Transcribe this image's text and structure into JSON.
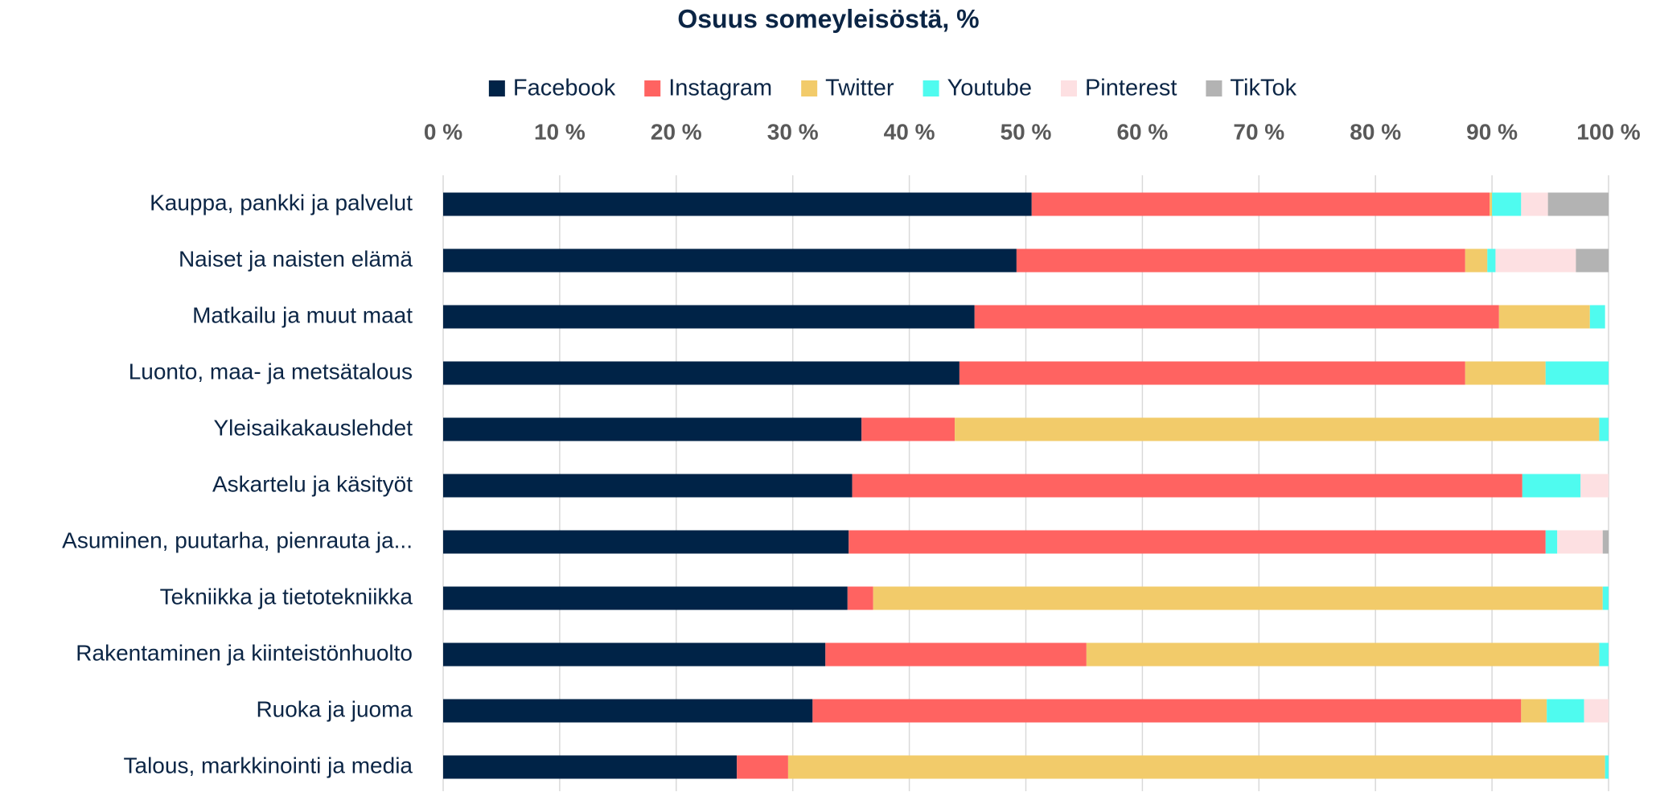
{
  "chart_data": {
    "type": "stacked-barh",
    "title": "Osuus someyleisöstä, %",
    "categories": [
      "Kauppa, pankki ja palvelut",
      "Naiset ja naisten elämä",
      "Matkailu ja muut maat",
      "Luonto, maa- ja metsätalous",
      "Yleisaikakauslehdet",
      "Askartelu ja käsityöt",
      "Asuminen, puutarha, pienrauta ja...",
      "Tekniikka ja tietotekniikka",
      "Rakentaminen ja kiinteistönhuolto",
      "Ruoka ja juoma",
      "Talous, markkinointi ja media"
    ],
    "series": [
      {
        "name": "Facebook",
        "color": "#002347",
        "values": [
          50.5,
          49.2,
          45.6,
          44.3,
          35.9,
          35.1,
          34.8,
          34.7,
          32.8,
          31.7,
          25.2
        ]
      },
      {
        "name": "Instagram",
        "color": "#ff6361",
        "values": [
          39.3,
          38.5,
          45.0,
          43.4,
          8.0,
          57.5,
          59.8,
          2.2,
          22.4,
          60.8,
          4.4
        ]
      },
      {
        "name": "Twitter",
        "color": "#f2cb6a",
        "values": [
          0.2,
          1.9,
          7.8,
          6.9,
          55.3,
          0,
          0,
          62.6,
          44.0,
          2.2,
          70.1
        ]
      },
      {
        "name": "Youtube",
        "color": "#4ffbef",
        "values": [
          2.5,
          0.7,
          1.3,
          5.4,
          0.8,
          5.0,
          1.0,
          0.5,
          0.8,
          3.2,
          0.3
        ]
      },
      {
        "name": "Pinterest",
        "color": "#fde0e2",
        "values": [
          2.3,
          6.9,
          0,
          0,
          0,
          2.4,
          3.9,
          0,
          0,
          2.1,
          0
        ]
      },
      {
        "name": "TikTok",
        "color": "#b3b3b3",
        "values": [
          5.2,
          2.8,
          0,
          0,
          0,
          0,
          0.5,
          0,
          0,
          0,
          0
        ]
      }
    ],
    "xlim": [
      0,
      100
    ],
    "xticks": [
      {
        "value": 0,
        "label": "0 %"
      },
      {
        "value": 10,
        "label": "10 %"
      },
      {
        "value": 20,
        "label": "20 %"
      },
      {
        "value": 30,
        "label": "30 %"
      },
      {
        "value": 40,
        "label": "40 %"
      },
      {
        "value": 50,
        "label": "50 %"
      },
      {
        "value": 60,
        "label": "60 %"
      },
      {
        "value": 70,
        "label": "70 %"
      },
      {
        "value": 80,
        "label": "80 %"
      },
      {
        "value": 90,
        "label": "90 %"
      },
      {
        "value": 100,
        "label": "100 %"
      }
    ],
    "grid": true,
    "legend": "top"
  }
}
